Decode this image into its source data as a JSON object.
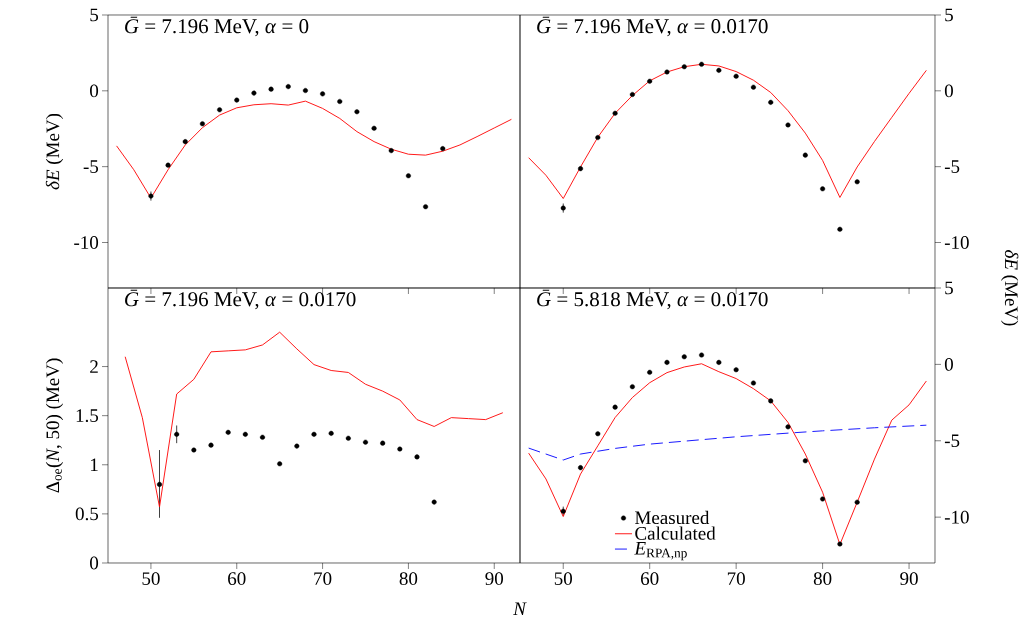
{
  "chart_data": [
    {
      "type": "line",
      "title": "*Ḡ* = 7.196 MeV, *α* = 0",
      "ylabel": "*δE* (MeV)",
      "xlim": [
        45,
        93
      ],
      "ylim": [
        -13,
        5
      ],
      "xticks": [
        50,
        60,
        70,
        80,
        90
      ],
      "yticks": [
        -10,
        -5,
        0,
        5
      ],
      "tick_labels": "y",
      "series": [
        {
          "type": "scatter",
          "color": "#000000",
          "marker": "circle",
          "x": [
            50,
            52,
            54,
            56,
            58,
            60,
            62,
            64,
            66,
            68,
            70,
            72,
            74,
            76,
            78,
            80,
            82,
            84
          ],
          "values": [
            -6.94,
            -4.9,
            -3.35,
            -2.17,
            -1.25,
            -0.61,
            -0.15,
            0.11,
            0.28,
            0.02,
            -0.2,
            -0.7,
            -1.38,
            -2.47,
            -3.94,
            -5.6,
            -7.64,
            -3.81
          ],
          "errors": [
            0.3,
            null,
            null,
            null,
            null,
            null,
            null,
            null,
            null,
            null,
            null,
            null,
            null,
            null,
            null,
            null,
            null,
            null
          ]
        },
        {
          "color": "#ff0000",
          "line_style": "solid",
          "x": [
            46,
            48,
            50,
            52,
            54,
            56,
            58,
            60,
            62,
            64,
            66,
            68,
            70,
            72,
            74,
            76,
            78,
            80,
            82,
            84,
            86,
            88,
            90,
            92
          ],
          "values": [
            -3.63,
            -5.2,
            -7.07,
            -5.2,
            -3.57,
            -2.43,
            -1.6,
            -1.12,
            -0.92,
            -0.85,
            -0.94,
            -0.68,
            -1.16,
            -1.82,
            -2.69,
            -3.35,
            -3.85,
            -4.18,
            -4.24,
            -3.98,
            -3.57,
            -3.02,
            -2.45,
            -1.88
          ]
        }
      ]
    },
    {
      "type": "line",
      "title": "*Ḡ* = 7.196 MeV, *α* = 0.0170",
      "ylabel": "*δE* (MeV)",
      "xlim": [
        45,
        93
      ],
      "ylim": [
        -13,
        5
      ],
      "xticks": [
        50,
        60,
        70,
        80,
        90
      ],
      "yticks": [
        -10,
        -5,
        0,
        5
      ],
      "tick_labels": "y",
      "series": [
        {
          "type": "scatter",
          "color": "#000000",
          "marker": "circle",
          "x": [
            50,
            52,
            54,
            56,
            58,
            60,
            62,
            64,
            66,
            68,
            70,
            72,
            74,
            76,
            78,
            80,
            82,
            84
          ],
          "values": [
            -7.73,
            -5.13,
            -3.08,
            -1.48,
            -0.24,
            0.63,
            1.24,
            1.59,
            1.75,
            1.35,
            0.96,
            0.24,
            -0.76,
            -2.25,
            -4.24,
            -6.46,
            -9.13,
            -6.0
          ],
          "errors": [
            0.3,
            null,
            null,
            null,
            null,
            null,
            null,
            null,
            null,
            null,
            null,
            null,
            null,
            null,
            null,
            null,
            null,
            null
          ]
        },
        {
          "color": "#ff0000",
          "line_style": "solid",
          "x": [
            46,
            48,
            50,
            52,
            54,
            56,
            58,
            60,
            62,
            64,
            66,
            68,
            70,
            72,
            74,
            76,
            78,
            80,
            82,
            84,
            86,
            88,
            90,
            92
          ],
          "values": [
            -4.41,
            -5.57,
            -7.1,
            -5.02,
            -3.06,
            -1.48,
            -0.31,
            0.66,
            1.24,
            1.59,
            1.75,
            1.64,
            1.27,
            0.7,
            -0.11,
            -1.31,
            -2.79,
            -4.59,
            -7.03,
            -5.02,
            -3.34,
            -1.75,
            -0.17,
            1.35
          ]
        }
      ]
    },
    {
      "type": "line",
      "title": "*Ḡ* = 7.196 MeV, *α* = 0.0170",
      "xlabel": "*N*",
      "ylabel": "Δ$_{oe}$(*N*, 50) (MeV)",
      "xlim": [
        45,
        93
      ],
      "ylim": [
        0,
        2.8
      ],
      "xticks": [
        50,
        60,
        70,
        80,
        90
      ],
      "yticks": [
        0,
        0.5,
        1,
        1.5,
        2
      ],
      "series": [
        {
          "type": "scatter",
          "color": "#000000",
          "marker": "circle",
          "x": [
            51,
            53,
            55,
            57,
            59,
            61,
            63,
            65,
            67,
            69,
            71,
            73,
            75,
            77,
            79,
            81,
            83
          ],
          "values": [
            0.8,
            1.31,
            1.15,
            1.2,
            1.33,
            1.31,
            1.28,
            1.01,
            1.19,
            1.31,
            1.32,
            1.27,
            1.23,
            1.22,
            1.16,
            1.08,
            0.62
          ],
          "errors": [
            [
              0.46,
              1.15
            ],
            0.09,
            null,
            null,
            null,
            null,
            null,
            null,
            null,
            null,
            null,
            null,
            null,
            null,
            null,
            null,
            null
          ]
        },
        {
          "color": "#ff0000",
          "line_style": "solid",
          "x": [
            47,
            49,
            51,
            53,
            55,
            57,
            59,
            61,
            63,
            65,
            67,
            69,
            71,
            73,
            75,
            77,
            79,
            81,
            83,
            85,
            87,
            89,
            91
          ],
          "values": [
            2.1,
            1.48,
            0.57,
            1.72,
            1.87,
            2.15,
            2.16,
            2.17,
            2.22,
            2.35,
            2.18,
            2.02,
            1.96,
            1.94,
            1.82,
            1.75,
            1.66,
            1.46,
            1.39,
            1.48,
            1.47,
            1.46,
            1.53
          ]
        }
      ]
    },
    {
      "type": "line",
      "title": "*Ḡ* = 5.818 MeV, *α* = 0.0170",
      "xlim": [
        45,
        93
      ],
      "ylim": [
        -13,
        5
      ],
      "xticks": [
        50,
        60,
        70,
        80,
        90
      ],
      "yticks": [
        -10,
        -5,
        0,
        5
      ],
      "legend": "bottom",
      "series": [
        {
          "type": "scatter",
          "name": "Measured",
          "color": "#000000",
          "marker": "circle",
          "x": [
            50,
            52,
            54,
            56,
            58,
            60,
            62,
            64,
            66,
            68,
            70,
            72,
            74,
            76,
            78,
            80,
            82,
            84
          ],
          "values": [
            -9.61,
            -6.76,
            -4.54,
            -2.8,
            -1.46,
            -0.52,
            0.13,
            0.5,
            0.61,
            0.13,
            -0.35,
            -1.22,
            -2.39,
            -4.09,
            -6.31,
            -8.81,
            -11.76,
            -9.02
          ],
          "errors": [
            0.3,
            null,
            null,
            null,
            null,
            null,
            null,
            null,
            null,
            null,
            null,
            null,
            null,
            null,
            null,
            null,
            null,
            null
          ]
        },
        {
          "name": "Calculated",
          "color": "#ff0000",
          "line_style": "solid",
          "x": [
            46,
            48,
            50,
            52,
            54,
            56,
            58,
            60,
            62,
            64,
            66,
            68,
            70,
            72,
            74,
            76,
            78,
            80,
            82,
            84,
            86,
            88,
            90,
            92
          ],
          "values": [
            -5.81,
            -7.5,
            -9.96,
            -7.18,
            -5.33,
            -3.48,
            -2.17,
            -1.2,
            -0.54,
            -0.17,
            0.04,
            -0.48,
            -0.93,
            -1.59,
            -2.39,
            -3.8,
            -5.87,
            -8.37,
            -11.79,
            -9.02,
            -6.2,
            -3.65,
            -2.65,
            -1.09
          ]
        },
        {
          "name": "*E*$_{RPA,np}$",
          "color": "#0000ff",
          "line_style": "dashed",
          "x": [
            46,
            50,
            52,
            56,
            60,
            66,
            70,
            76,
            80,
            86,
            92
          ],
          "values": [
            -5.48,
            -6.26,
            -5.87,
            -5.5,
            -5.22,
            -4.93,
            -4.74,
            -4.5,
            -4.35,
            -4.15,
            -3.98
          ]
        }
      ]
    }
  ]
}
